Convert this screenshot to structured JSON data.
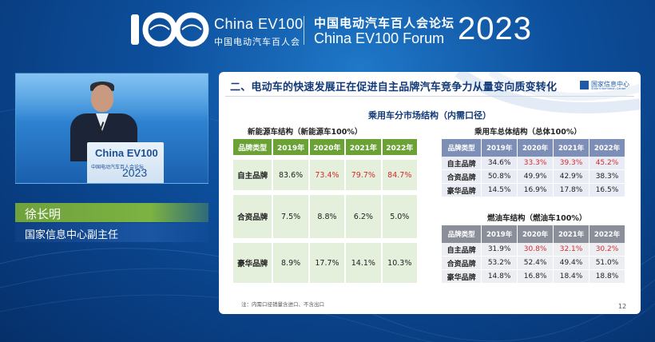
{
  "header": {
    "logo_brand": "China EV100",
    "logo_sub": "中国电动汽车百人会",
    "forum_cn": "中国电动汽车百人会论坛",
    "forum_en": "China EV100 Forum",
    "forum_year": "2023"
  },
  "speaker": {
    "name": "徐长明",
    "title": "国家信息中心副主任",
    "podium_brand": "China EV100",
    "podium_text": "中国电动汽车百人会论坛",
    "podium_year": "2023"
  },
  "slide": {
    "title": "二、电动车的快速发展正在促进自主品牌汽车竞争力从量变向质变转化",
    "logo_cn": "国家信息中心",
    "logo_en": "State Information Center",
    "main_subtitle": "乘用车分市场结构（内需口径）",
    "note": "注：内需口径销量含进口、不含出口",
    "page_number": "12",
    "nev_table": {
      "caption": "新能源车结构（新能源车100%）",
      "headers": [
        "品牌类型",
        "2019年",
        "2020年",
        "2021年",
        "2022年"
      ],
      "rows": [
        {
          "brand": "自主品牌",
          "values": [
            "83.6%",
            "73.4%",
            "79.7%",
            "84.7%"
          ],
          "red": [
            false,
            true,
            true,
            true
          ]
        },
        {
          "brand": "合资品牌",
          "values": [
            "7.5%",
            "8.8%",
            "6.2%",
            "5.0%"
          ],
          "red": [
            false,
            false,
            false,
            false
          ]
        },
        {
          "brand": "豪华品牌",
          "values": [
            "8.9%",
            "17.7%",
            "14.1%",
            "10.3%"
          ],
          "red": [
            false,
            false,
            false,
            false
          ]
        }
      ]
    },
    "total_table": {
      "caption": "乘用车总体结构（总体100%）",
      "headers": [
        "品牌类型",
        "2019年",
        "2020年",
        "2021年",
        "2022年"
      ],
      "rows": [
        {
          "brand": "自主品牌",
          "values": [
            "34.6%",
            "33.3%",
            "39.3%",
            "45.2%"
          ],
          "red": [
            false,
            true,
            true,
            true
          ]
        },
        {
          "brand": "合资品牌",
          "values": [
            "50.8%",
            "49.9%",
            "42.9%",
            "38.3%"
          ],
          "red": [
            false,
            false,
            false,
            false
          ]
        },
        {
          "brand": "豪华品牌",
          "values": [
            "14.5%",
            "16.9%",
            "17.8%",
            "16.5%"
          ],
          "red": [
            false,
            false,
            false,
            false
          ]
        }
      ]
    },
    "fuel_table": {
      "caption": "燃油车结构（燃油车100%）",
      "headers": [
        "品牌类型",
        "2019年",
        "2020年",
        "2021年",
        "2022年"
      ],
      "rows": [
        {
          "brand": "自主品牌",
          "values": [
            "31.9%",
            "30.8%",
            "32.1%",
            "30.2%"
          ],
          "red": [
            false,
            true,
            true,
            true
          ]
        },
        {
          "brand": "合资品牌",
          "values": [
            "53.2%",
            "52.4%",
            "49.4%",
            "51.0%"
          ],
          "red": [
            false,
            false,
            false,
            false
          ]
        },
        {
          "brand": "豪华品牌",
          "values": [
            "14.8%",
            "16.8%",
            "18.4%",
            "18.8%"
          ],
          "red": [
            false,
            false,
            false,
            false
          ]
        }
      ]
    }
  },
  "colors": {
    "background": "#0d4f9c",
    "name_bar": "#7cb342",
    "nev_header": "#6aa236",
    "total_header": "#7d8fb6",
    "fuel_header": "#8a8f9a",
    "highlight_red": "#d42b2b"
  }
}
